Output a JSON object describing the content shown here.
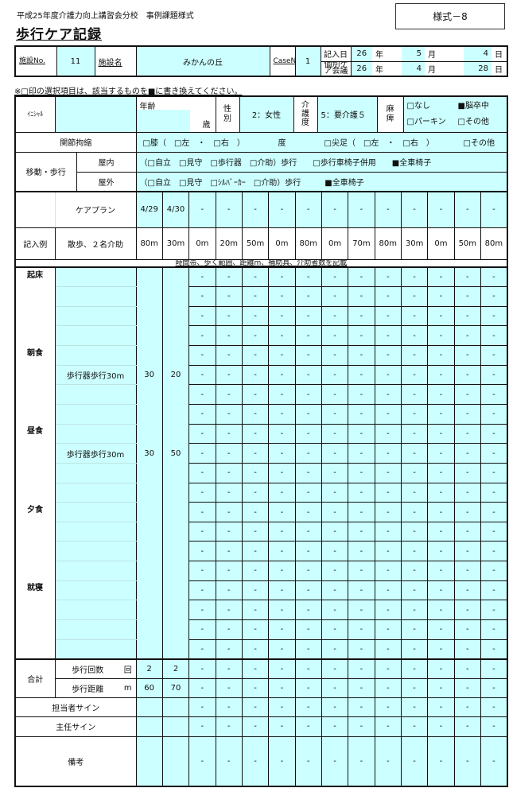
{
  "header": {
    "subtitle": "平成25年度介護力向上講習会分校　事例課題様式",
    "title": "歩行ケア記録",
    "form_no": "様式－8"
  },
  "facility": {
    "no_label": "施設No.",
    "no_value": "11",
    "name_label": "施設名",
    "name_value": "みかんの丘",
    "case_label": "CaseNo",
    "case_value": "1",
    "entry_date_label": "記入日",
    "entry_date": {
      "year": "26",
      "month": "5",
      "day": "4"
    },
    "conference_label": "個別ケア会議",
    "conference_date": {
      "year": "26",
      "month": "4",
      "day": "28"
    },
    "year_unit": "年",
    "month_unit": "月",
    "day_unit": "日"
  },
  "instruction": "※□印の選択項目は、該当するものを■に書き換えてください。",
  "profile": {
    "initial_label": "ｲﾆｼｬﾙ",
    "initial_value": "",
    "age_label": "年齢",
    "age_value": "",
    "age_unit": "歳",
    "sex_label": "性別",
    "sex_value": "2：女性",
    "care_level_label": "介護度",
    "care_level_value": "5：要介護５",
    "paralysis_label": "麻痺",
    "paralysis_options": [
      "□なし",
      "■脳卒中",
      "□パーキン",
      "□その他"
    ]
  },
  "joint": {
    "label": "関節拘縮",
    "items": [
      "□膝（　□左　・　□右　）",
      "度",
      "□尖足（　□左　・　□右　）",
      "□その他"
    ]
  },
  "mobility": {
    "label": "移動・歩行",
    "indoor_label": "屋内",
    "indoor_value": "（□自立　□見守　□歩行器　□介助）歩行　　□歩行車椅子併用　　■全車椅子",
    "outdoor_label": "屋外",
    "outdoor_value": "（□自立　□見守　□ｼﾙﾊﾞｰｶｰ　□介助）歩行　　　■全車椅子"
  },
  "care_plan": {
    "label": "ケアプラン",
    "dates": [
      "4/29",
      "4/30",
      "-",
      "-",
      "-",
      "-",
      "-",
      "-",
      "-",
      "-",
      "-",
      "-",
      "-",
      "-"
    ]
  },
  "example": {
    "label": "記入例",
    "activity": "散歩、２名介助",
    "values": [
      "80m",
      "30m",
      "0m",
      "20m",
      "50m",
      "0m",
      "80m",
      "0m",
      "70m",
      "80m",
      "30m",
      "0m",
      "50m",
      "80m"
    ]
  },
  "record_note": "時間帯、歩く範囲、距離m、補助具、介助者数を記載",
  "empty_mark": "-",
  "records": [
    {
      "time": "起床",
      "activity": "",
      "d1": "",
      "d2": ""
    },
    {
      "time": "",
      "activity": "",
      "d1": "",
      "d2": ""
    },
    {
      "time": "",
      "activity": "",
      "d1": "",
      "d2": ""
    },
    {
      "time": "",
      "activity": "",
      "d1": "",
      "d2": ""
    },
    {
      "time": "朝食",
      "activity": "",
      "d1": "",
      "d2": ""
    },
    {
      "time": "",
      "activity": "歩行器歩行30m",
      "d1": "30",
      "d2": "20"
    },
    {
      "time": "",
      "activity": "",
      "d1": "",
      "d2": ""
    },
    {
      "time": "",
      "activity": "",
      "d1": "",
      "d2": ""
    },
    {
      "time": "昼食",
      "activity": "",
      "d1": "",
      "d2": ""
    },
    {
      "time": "",
      "activity": "歩行器歩行30m",
      "d1": "30",
      "d2": "50"
    },
    {
      "time": "",
      "activity": "",
      "d1": "",
      "d2": ""
    },
    {
      "time": "",
      "activity": "",
      "d1": "",
      "d2": ""
    },
    {
      "time": "夕食",
      "activity": "",
      "d1": "",
      "d2": ""
    },
    {
      "time": "",
      "activity": "",
      "d1": "",
      "d2": ""
    },
    {
      "time": "",
      "activity": "",
      "d1": "",
      "d2": ""
    },
    {
      "time": "",
      "activity": "",
      "d1": "",
      "d2": ""
    },
    {
      "time": "就寝",
      "activity": "",
      "d1": "",
      "d2": ""
    },
    {
      "time": "",
      "activity": "",
      "d1": "",
      "d2": ""
    },
    {
      "time": "",
      "activity": "",
      "d1": "",
      "d2": ""
    },
    {
      "time": "",
      "activity": "",
      "d1": "",
      "d2": ""
    }
  ],
  "totals": {
    "label": "合計",
    "count_label": "歩行回数",
    "count_unit": "回",
    "count_values": [
      "2",
      "2"
    ],
    "distance_label": "歩行距離",
    "distance_unit": "m",
    "distance_values": [
      "60",
      "70"
    ]
  },
  "signatures": {
    "staff_label": "担当者サイン",
    "chief_label": "主任サイン",
    "remarks_label": "備考"
  },
  "colors": {
    "input_fill": "#ccffff",
    "border": "#111111"
  }
}
